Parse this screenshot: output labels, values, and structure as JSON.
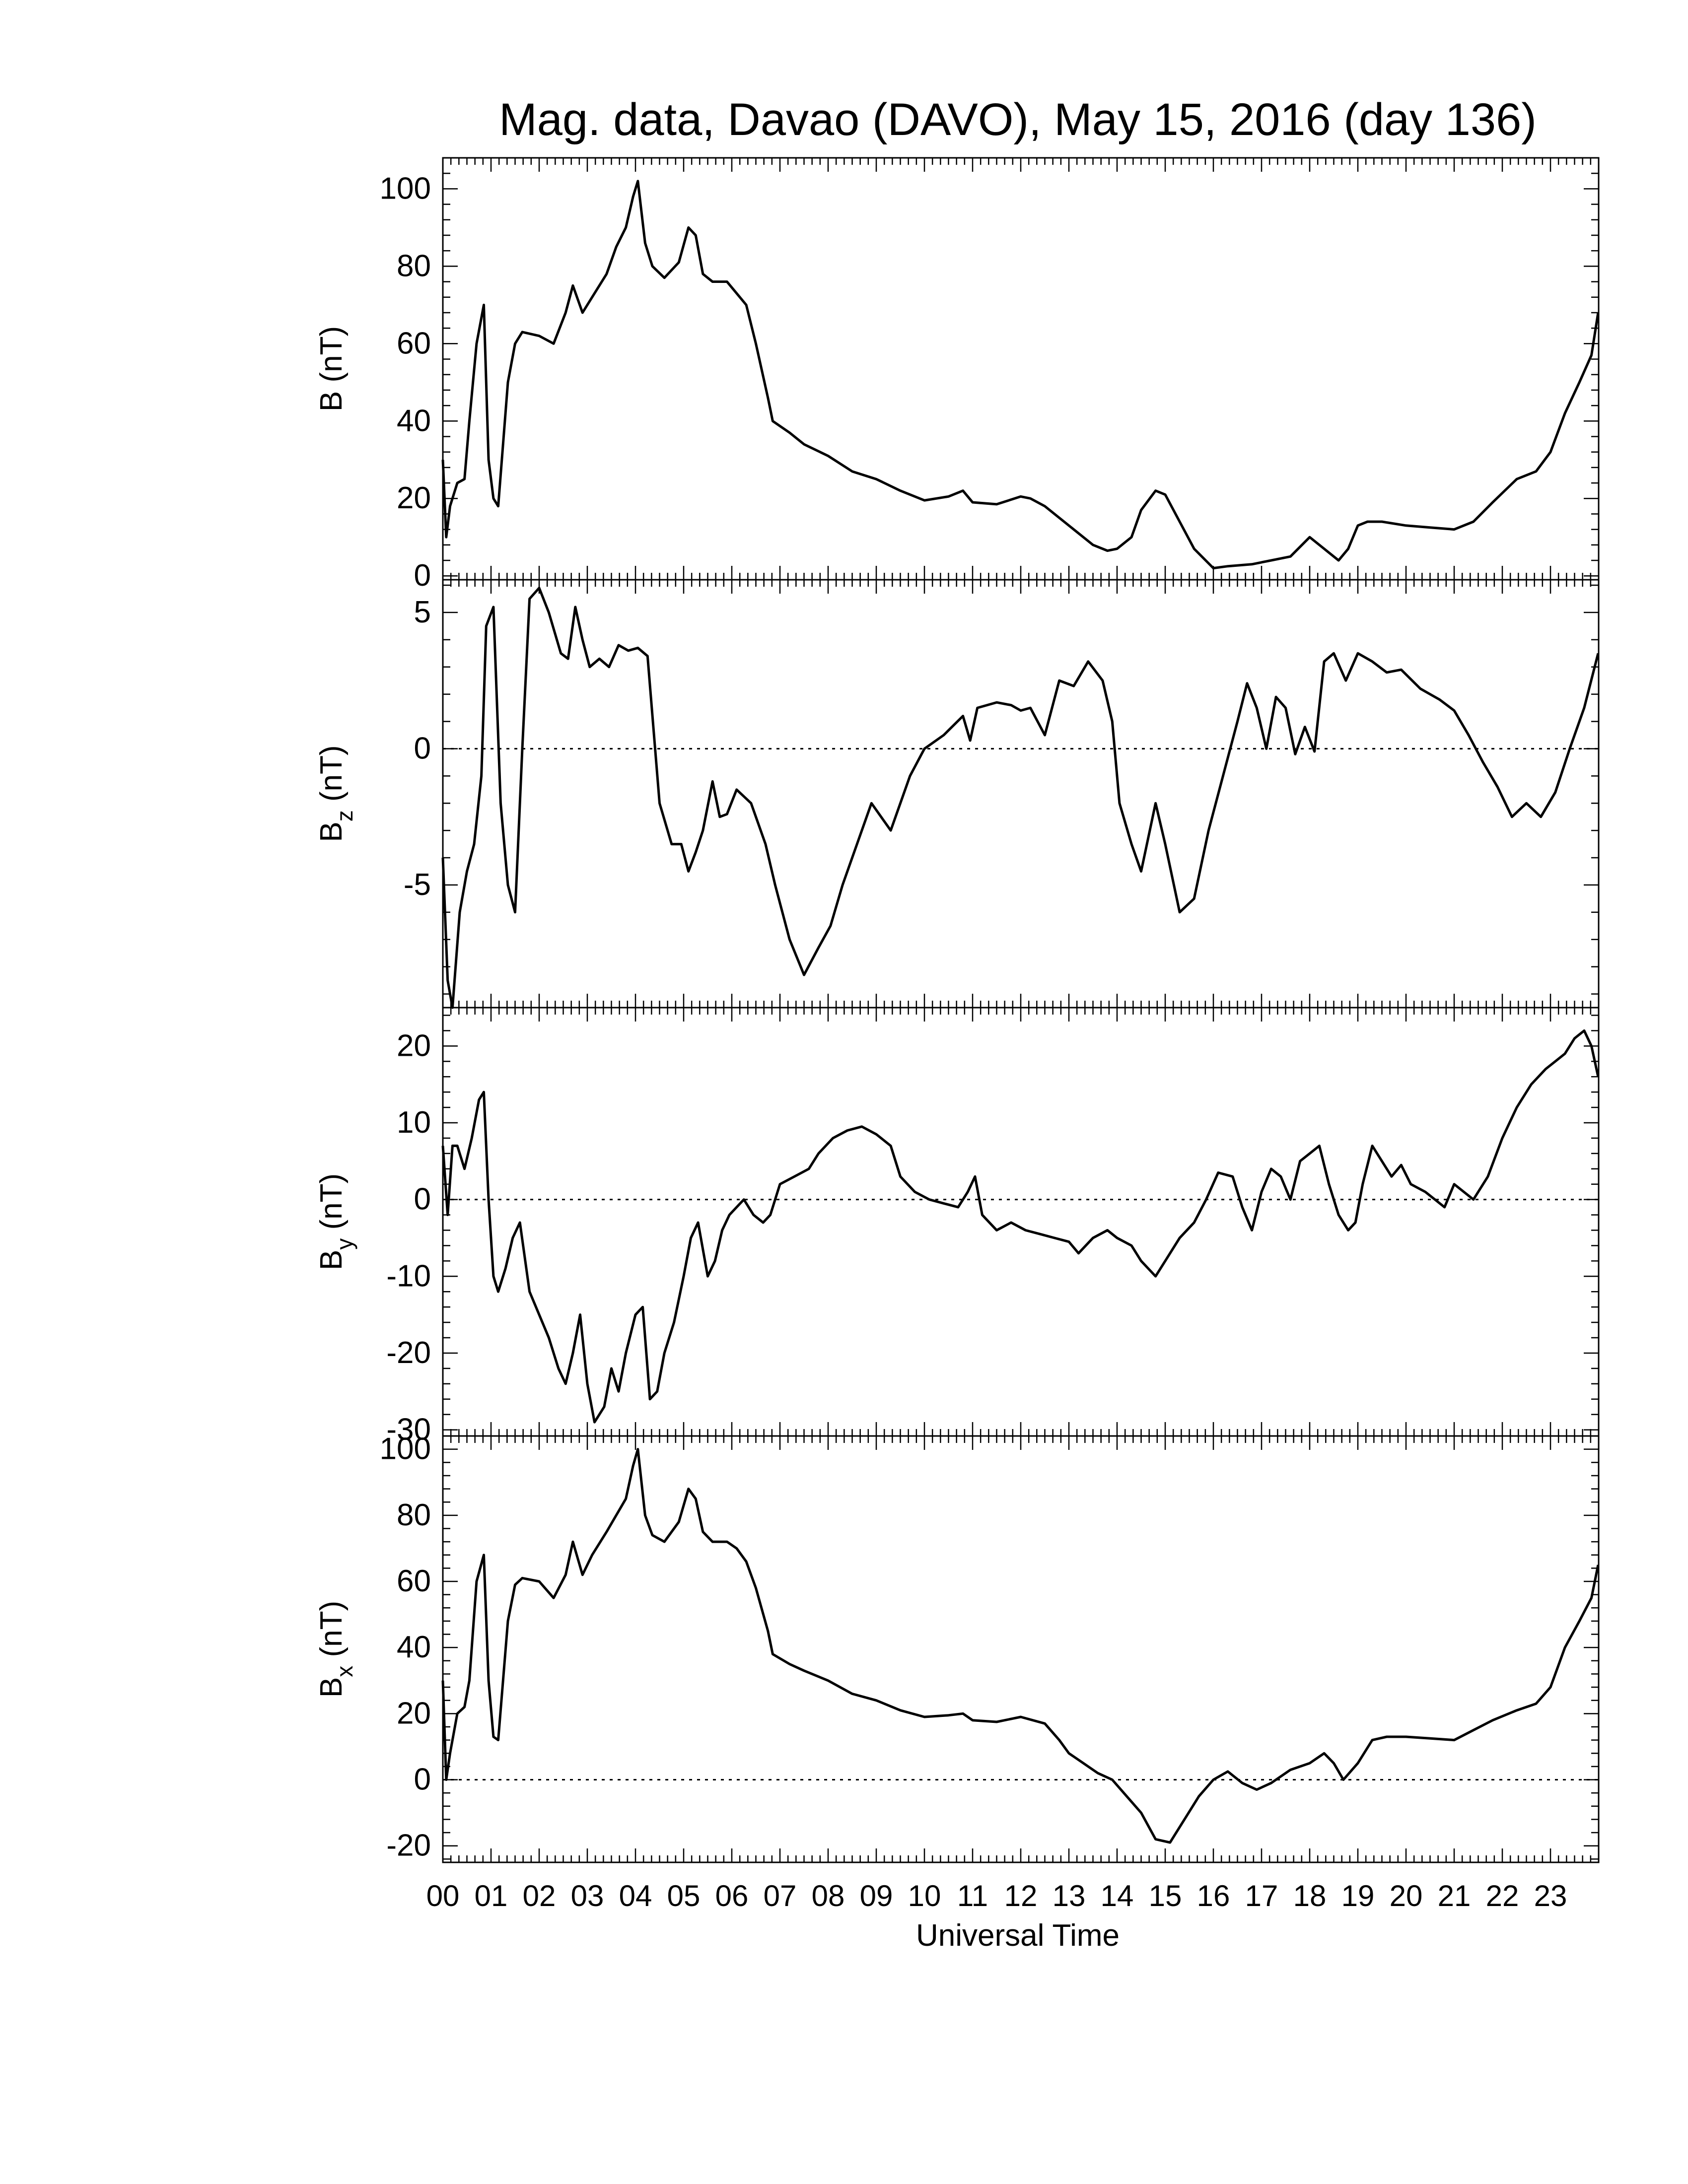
{
  "title": "Mag. data, Davao (DAVO), May 15, 2016 (day 136)",
  "xlabel": "Universal Time",
  "x_ticks": [
    "00",
    "01",
    "02",
    "03",
    "04",
    "05",
    "06",
    "07",
    "08",
    "09",
    "10",
    "11",
    "12",
    "13",
    "14",
    "15",
    "16",
    "17",
    "18",
    "19",
    "20",
    "21",
    "22",
    "23"
  ],
  "chart_data": [
    {
      "type": "line",
      "ylabel_main": "B (nT)",
      "ylabel_sub": "",
      "ylim": [
        -1,
        108
      ],
      "yticks": [
        0,
        20,
        40,
        60,
        80,
        100
      ],
      "zero_line": false,
      "series": [
        {
          "x": [
            0,
            0.07,
            0.15,
            0.3,
            0.45,
            0.55,
            0.7,
            0.85,
            0.95,
            1.05,
            1.15,
            1.35,
            1.5,
            1.65,
            2.0,
            2.3,
            2.55,
            2.7,
            2.9,
            3.1,
            3.4,
            3.6,
            3.8,
            3.95,
            4.05,
            4.2,
            4.35,
            4.6,
            4.9,
            5.1,
            5.25,
            5.4,
            5.6,
            5.9,
            6.1,
            6.3,
            6.5,
            6.75,
            6.85,
            7.2,
            7.5,
            8.0,
            8.5,
            9.0,
            9.5,
            10.0,
            10.5,
            10.8,
            11.0,
            11.5,
            12.0,
            12.2,
            12.5,
            13.0,
            13.5,
            13.8,
            14.0,
            14.3,
            14.5,
            14.8,
            15.0,
            15.3,
            15.6,
            16.0,
            16.3,
            16.8,
            17.2,
            17.6,
            18.0,
            18.3,
            18.6,
            18.8,
            19.0,
            19.2,
            19.5,
            20.0,
            20.5,
            21.0,
            21.4,
            21.8,
            22.3,
            22.7,
            23.0,
            23.3,
            23.6,
            23.85,
            23.99
          ],
          "y": [
            30,
            10,
            18,
            24,
            25,
            40,
            60,
            70,
            30,
            20,
            18,
            50,
            60,
            63,
            62,
            60,
            68,
            75,
            68,
            72,
            78,
            85,
            90,
            98,
            102,
            86,
            80,
            77,
            81,
            90,
            88,
            78,
            76,
            76,
            73,
            70,
            60,
            46,
            40,
            37,
            34,
            31,
            27,
            25,
            22,
            19.5,
            20.5,
            22,
            19,
            18.5,
            20.5,
            20,
            18,
            13,
            8,
            6.5,
            7,
            10,
            17,
            22,
            21,
            14,
            7,
            2,
            2.5,
            3,
            4,
            5,
            10,
            7,
            4,
            7,
            13,
            14,
            14,
            13,
            12.5,
            12,
            14,
            19,
            25,
            27,
            32,
            42,
            50,
            57,
            68
          ],
          "color": "#000000"
        }
      ]
    },
    {
      "type": "line",
      "ylabel_main": "B",
      "ylabel_sub": "z",
      "ylabel_unit": " (nT)",
      "ylim": [
        -9.5,
        6.2
      ],
      "yticks": [
        -5,
        0,
        5
      ],
      "zero_line": true,
      "series": [
        {
          "x": [
            0,
            0.1,
            0.2,
            0.35,
            0.5,
            0.65,
            0.8,
            0.9,
            1.05,
            1.2,
            1.35,
            1.5,
            1.65,
            1.8,
            2.0,
            2.2,
            2.45,
            2.6,
            2.75,
            2.9,
            3.05,
            3.25,
            3.45,
            3.65,
            3.85,
            4.05,
            4.25,
            4.5,
            4.75,
            4.95,
            5.1,
            5.25,
            5.4,
            5.6,
            5.75,
            5.9,
            6.1,
            6.4,
            6.7,
            6.9,
            7.2,
            7.5,
            7.8,
            8.05,
            8.3,
            8.6,
            8.9,
            9.3,
            9.7,
            10.0,
            10.4,
            10.8,
            10.95,
            11.1,
            11.3,
            11.5,
            11.8,
            12.0,
            12.2,
            12.5,
            12.8,
            13.1,
            13.4,
            13.7,
            13.9,
            14.05,
            14.3,
            14.5,
            14.8,
            15.0,
            15.3,
            15.6,
            15.9,
            16.2,
            16.5,
            16.7,
            16.9,
            17.1,
            17.3,
            17.5,
            17.7,
            17.9,
            18.1,
            18.3,
            18.5,
            18.75,
            19.0,
            19.3,
            19.6,
            19.9,
            20.3,
            20.7,
            21.0,
            21.3,
            21.6,
            21.9,
            22.2,
            22.5,
            22.8,
            23.1,
            23.4,
            23.7,
            23.99
          ],
          "y": [
            -4,
            -8.5,
            -9.5,
            -6,
            -4.5,
            -3.5,
            -1,
            4.5,
            5.2,
            -2,
            -5,
            -6,
            0,
            5.5,
            5.9,
            5,
            3.5,
            3.3,
            5.2,
            4,
            3,
            3.3,
            3,
            3.8,
            3.6,
            3.7,
            3.4,
            -2,
            -3.5,
            -3.5,
            -4.5,
            -3.8,
            -3,
            -1.2,
            -2.5,
            -2.4,
            -1.5,
            -2,
            -3.5,
            -5,
            -7,
            -8.3,
            -7.3,
            -6.5,
            -5,
            -3.5,
            -2,
            -3,
            -1,
            0,
            0.5,
            1.2,
            0.3,
            1.5,
            1.6,
            1.7,
            1.6,
            1.4,
            1.5,
            0.5,
            2.5,
            2.3,
            3.2,
            2.5,
            1,
            -2,
            -3.5,
            -4.5,
            -2,
            -3.5,
            -6,
            -5.5,
            -3,
            -1,
            1,
            2.4,
            1.5,
            0,
            1.9,
            1.5,
            -0.2,
            0.8,
            -0.1,
            3.2,
            3.5,
            2.5,
            3.5,
            3.2,
            2.8,
            2.9,
            2.2,
            1.8,
            1.4,
            0.5,
            -0.5,
            -1.4,
            -2.5,
            -2,
            -2.5,
            -1.6,
            0,
            1.5,
            3.5
          ],
          "color": "#000000"
        }
      ]
    },
    {
      "type": "line",
      "ylabel_main": "B",
      "ylabel_sub": "y",
      "ylabel_unit": " (nT)",
      "ylim": [
        -30.8,
        25
      ],
      "yticks": [
        -30,
        -20,
        -10,
        0,
        10,
        20
      ],
      "zero_line": true,
      "series": [
        {
          "x": [
            0,
            0.1,
            0.2,
            0.3,
            0.45,
            0.6,
            0.75,
            0.85,
            0.95,
            1.05,
            1.15,
            1.3,
            1.45,
            1.6,
            1.8,
            2.0,
            2.2,
            2.4,
            2.55,
            2.7,
            2.85,
            3.0,
            3.15,
            3.35,
            3.5,
            3.65,
            3.8,
            4.0,
            4.15,
            4.3,
            4.45,
            4.6,
            4.8,
            5.0,
            5.15,
            5.3,
            5.5,
            5.65,
            5.8,
            5.95,
            6.1,
            6.25,
            6.45,
            6.65,
            6.8,
            7.0,
            7.3,
            7.6,
            7.8,
            8.1,
            8.4,
            8.7,
            9.0,
            9.3,
            9.5,
            9.8,
            10.1,
            10.4,
            10.7,
            10.9,
            11.05,
            11.2,
            11.5,
            11.8,
            12.1,
            12.4,
            12.7,
            13.0,
            13.2,
            13.5,
            13.8,
            14.0,
            14.3,
            14.5,
            14.8,
            15.0,
            15.3,
            15.6,
            15.85,
            16.1,
            16.4,
            16.6,
            16.8,
            17.0,
            17.2,
            17.4,
            17.6,
            17.8,
            18.0,
            18.2,
            18.4,
            18.6,
            18.8,
            18.95,
            19.1,
            19.3,
            19.5,
            19.7,
            19.9,
            20.1,
            20.4,
            20.6,
            20.8,
            21.0,
            21.2,
            21.4,
            21.7,
            22.0,
            22.3,
            22.6,
            22.9,
            23.1,
            23.3,
            23.5,
            23.7,
            23.85,
            23.99
          ],
          "y": [
            7,
            -2,
            7,
            7,
            4,
            8,
            13,
            14,
            0,
            -10,
            -12,
            -9,
            -5,
            -3,
            -12,
            -15,
            -18,
            -22,
            -24,
            -20,
            -15,
            -24,
            -29,
            -27,
            -22,
            -25,
            -20,
            -15,
            -14,
            -26,
            -25,
            -20,
            -16,
            -10,
            -5,
            -3,
            -10,
            -8,
            -4,
            -2,
            -1,
            0,
            -2,
            -3,
            -2,
            2,
            3,
            4,
            6,
            8,
            9,
            9.5,
            8.5,
            7,
            3,
            1,
            0,
            -0.5,
            -1,
            1,
            3,
            -2,
            -4,
            -3,
            -4,
            -4.5,
            -5,
            -5.5,
            -7,
            -5,
            -4,
            -5,
            -6,
            -8,
            -10,
            -8,
            -5,
            -3,
            0,
            3.5,
            3,
            -1,
            -4,
            1,
            4,
            3,
            0,
            5,
            6,
            7,
            2,
            -2,
            -4,
            -3,
            2,
            7,
            5,
            3,
            4.5,
            2,
            1,
            0,
            -1,
            2,
            1,
            0,
            3,
            8,
            12,
            15,
            17,
            18,
            19,
            21,
            22,
            20,
            16
          ],
          "color": "#000000"
        }
      ]
    },
    {
      "type": "line",
      "ylabel_main": "B",
      "ylabel_sub": "x",
      "ylabel_unit": " (nT)",
      "ylim": [
        -25,
        104
      ],
      "yticks": [
        -20,
        0,
        20,
        40,
        60,
        80,
        100
      ],
      "zero_line": true,
      "series": [
        {
          "x": [
            0,
            0.07,
            0.15,
            0.3,
            0.45,
            0.55,
            0.7,
            0.85,
            0.95,
            1.05,
            1.15,
            1.35,
            1.5,
            1.65,
            2.0,
            2.3,
            2.55,
            2.7,
            2.9,
            3.1,
            3.4,
            3.6,
            3.8,
            3.95,
            4.05,
            4.2,
            4.35,
            4.6,
            4.9,
            5.1,
            5.25,
            5.4,
            5.6,
            5.9,
            6.1,
            6.3,
            6.5,
            6.75,
            6.85,
            7.2,
            7.5,
            8.0,
            8.5,
            9.0,
            9.5,
            10.0,
            10.5,
            10.8,
            11.0,
            11.5,
            12.0,
            12.5,
            12.8,
            13.0,
            13.3,
            13.6,
            13.9,
            14.2,
            14.5,
            14.8,
            15.1,
            15.4,
            15.7,
            16.0,
            16.3,
            16.6,
            16.9,
            17.2,
            17.6,
            18.0,
            18.3,
            18.5,
            18.7,
            19.0,
            19.3,
            19.6,
            20.0,
            20.5,
            21.0,
            21.4,
            21.8,
            22.3,
            22.7,
            23.0,
            23.3,
            23.6,
            23.85,
            23.99
          ],
          "y": [
            30,
            0,
            8,
            20,
            22,
            30,
            60,
            68,
            30,
            13,
            12,
            48,
            59,
            61,
            60,
            55,
            62,
            72,
            62,
            68,
            75,
            80,
            85,
            95,
            100,
            80,
            74,
            72,
            78,
            88,
            85,
            75,
            72,
            72,
            70,
            66,
            58,
            45,
            38,
            35,
            33,
            30,
            26,
            24,
            21,
            19,
            19.5,
            20,
            18,
            17.5,
            19,
            17,
            12,
            8,
            5,
            2,
            0,
            -5,
            -10,
            -18,
            -19,
            -12,
            -5,
            0,
            2.5,
            -1,
            -3,
            -1,
            3,
            5,
            8,
            5,
            0,
            5,
            12,
            13,
            13,
            12.5,
            12,
            15,
            18,
            21,
            23,
            28,
            40,
            48,
            55,
            65
          ],
          "color": "#000000"
        }
      ]
    }
  ]
}
